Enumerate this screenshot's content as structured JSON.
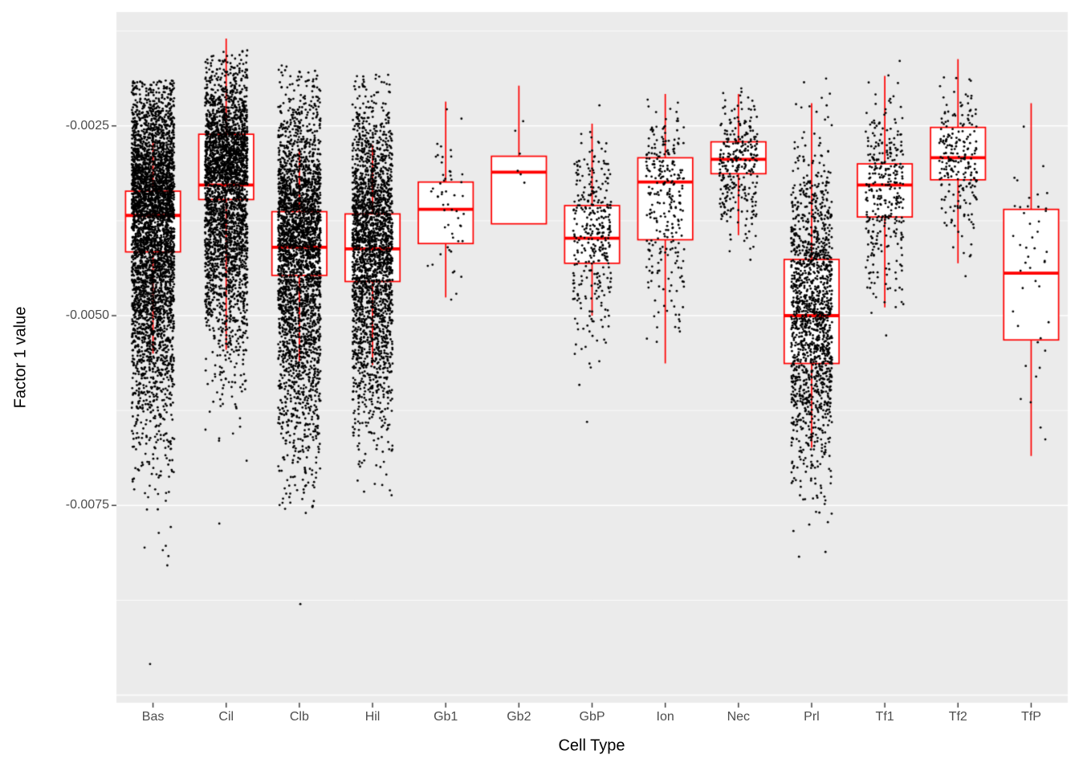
{
  "figure": {
    "background": "#FFFFFF"
  },
  "chart_data": {
    "type": "boxplot_with_jitter",
    "title": "",
    "xlabel": "Cell Type",
    "ylabel": "Factor 1 value",
    "ylim": [
      -0.0101,
      -0.001
    ],
    "grid": "on",
    "legend": "none",
    "y_axis_ticks": [
      {
        "value": -0.0025,
        "label": "-0.0025"
      },
      {
        "value": -0.005,
        "label": "-0.0050"
      },
      {
        "value": -0.0075,
        "label": "-0.0075"
      }
    ],
    "y_gridlines_major": [
      -0.0025,
      -0.005,
      -0.0075,
      -0.01
    ],
    "y_gridlines_minor": [
      -0.00125,
      -0.00375,
      -0.00625,
      -0.00875
    ],
    "colors": {
      "panel_bg": "#EBEBEB",
      "grid": "#FFFFFF",
      "box": "#FF0000",
      "box_fill": "#FFFFFF",
      "point": "#000000",
      "axis_text": "#4D4D4D",
      "axis_title": "#000000",
      "tick": "#333333"
    },
    "categories": [
      {
        "label": "Bas",
        "box": {
          "q1": -0.00416,
          "median": -0.00368,
          "q3": -0.00336,
          "whisker_low": -0.0055,
          "whisker_high": -0.0027
        },
        "points": {
          "n": 4000,
          "center": -0.0037,
          "sd_up": 0.0009,
          "sd_down": 0.0014,
          "min": -0.0083,
          "max": -0.0019,
          "jitter": 0.58,
          "extra": [
            -0.00959
          ]
        }
      },
      {
        "label": "Cil",
        "box": {
          "q1": -0.00347,
          "median": -0.00328,
          "q3": -0.00261,
          "whisker_low": -0.00545,
          "whisker_high": -0.00135
        },
        "points": {
          "n": 3000,
          "center": -0.0032,
          "sd_up": 0.00075,
          "sd_down": 0.00115,
          "min": -0.0071,
          "max": -0.0015,
          "jitter": 0.58,
          "extra": [
            -0.00774
          ]
        }
      },
      {
        "label": "Clb",
        "box": {
          "q1": -0.00447,
          "median": -0.0041,
          "q3": -0.00363,
          "whisker_low": -0.0056,
          "whisker_high": -0.0028
        },
        "points": {
          "n": 3000,
          "center": -0.0041,
          "sd_up": 0.00095,
          "sd_down": 0.00135,
          "min": -0.0076,
          "max": -0.0017,
          "jitter": 0.58,
          "extra": [
            -0.0088
          ]
        }
      },
      {
        "label": "Hil",
        "box": {
          "q1": -0.00455,
          "median": -0.00412,
          "q3": -0.00366,
          "whisker_low": -0.00565,
          "whisker_high": -0.00275
        },
        "points": {
          "n": 2400,
          "center": -0.0041,
          "sd_up": 0.0009,
          "sd_down": 0.0012,
          "min": -0.0074,
          "max": -0.0018,
          "jitter": 0.55,
          "extra": []
        }
      },
      {
        "label": "Gb1",
        "box": {
          "q1": -0.00405,
          "median": -0.0036,
          "q3": -0.00324,
          "whisker_low": -0.00476,
          "whisker_high": -0.00218
        },
        "points": {
          "n": 55,
          "center": -0.0036,
          "sd_up": 0.00055,
          "sd_down": 0.0006,
          "min": -0.0056,
          "max": -0.00215,
          "jitter": 0.5,
          "extra": []
        }
      },
      {
        "label": "Gb2",
        "box": {
          "q1": -0.00379,
          "median": -0.00311,
          "q3": -0.0029,
          "whisker_low": -0.00379,
          "whisker_high": -0.00197
        },
        "points": {
          "n": 6,
          "center": -0.0031,
          "sd_up": 0.00045,
          "sd_down": 0.0004,
          "min": -0.0038,
          "max": -0.002,
          "jitter": 0.3,
          "extra": []
        }
      },
      {
        "label": "GbP",
        "box": {
          "q1": -0.00431,
          "median": -0.00398,
          "q3": -0.00355,
          "whisker_low": -0.005,
          "whisker_high": -0.00247
        },
        "points": {
          "n": 340,
          "center": -0.00398,
          "sd_up": 0.00065,
          "sd_down": 0.00075,
          "min": -0.0063,
          "max": -0.002,
          "jitter": 0.52,
          "extra": [
            -0.0064
          ]
        }
      },
      {
        "label": "Ion",
        "box": {
          "q1": -0.004,
          "median": -0.00324,
          "q3": -0.00292,
          "whisker_low": -0.00563,
          "whisker_high": -0.00208
        },
        "points": {
          "n": 280,
          "center": -0.0033,
          "sd_up": 0.00055,
          "sd_down": 0.00095,
          "min": -0.0059,
          "max": -0.00185,
          "jitter": 0.52,
          "extra": []
        }
      },
      {
        "label": "Nec",
        "box": {
          "q1": -0.00313,
          "median": -0.00294,
          "q3": -0.00271,
          "whisker_low": -0.00394,
          "whisker_high": -0.00208
        },
        "points": {
          "n": 300,
          "center": -0.00296,
          "sd_up": 0.0004,
          "sd_down": 0.00048,
          "min": -0.0046,
          "max": -0.0014,
          "jitter": 0.52,
          "extra": []
        }
      },
      {
        "label": "Prl",
        "box": {
          "q1": -0.00563,
          "median": -0.005,
          "q3": -0.00426,
          "whisker_low": -0.00674,
          "whisker_high": -0.0022
        },
        "points": {
          "n": 1500,
          "center": -0.005,
          "sd_up": 0.0011,
          "sd_down": 0.00105,
          "min": -0.0082,
          "max": -0.0018,
          "jitter": 0.56,
          "extra": []
        }
      },
      {
        "label": "Tf1",
        "box": {
          "q1": -0.0037,
          "median": -0.00328,
          "q3": -0.003,
          "whisker_low": -0.00489,
          "whisker_high": -0.00184
        },
        "points": {
          "n": 330,
          "center": -0.0033,
          "sd_up": 0.0006,
          "sd_down": 0.00072,
          "min": -0.00555,
          "max": -0.0016,
          "jitter": 0.52,
          "extra": []
        }
      },
      {
        "label": "Tf2",
        "box": {
          "q1": -0.00321,
          "median": -0.00292,
          "q3": -0.00252,
          "whisker_low": -0.00431,
          "whisker_high": -0.00162
        },
        "points": {
          "n": 230,
          "center": -0.00292,
          "sd_up": 0.00048,
          "sd_down": 0.00055,
          "min": -0.0045,
          "max": -0.0015,
          "jitter": 0.52,
          "extra": []
        }
      },
      {
        "label": "TfP",
        "box": {
          "q1": -0.00532,
          "median": -0.00444,
          "q3": -0.0036,
          "whisker_low": -0.00685,
          "whisker_high": -0.0022
        },
        "points": {
          "n": 45,
          "center": -0.0044,
          "sd_up": 0.00095,
          "sd_down": 0.0011,
          "min": -0.0069,
          "max": -0.00215,
          "jitter": 0.5,
          "extra": []
        }
      }
    ]
  }
}
